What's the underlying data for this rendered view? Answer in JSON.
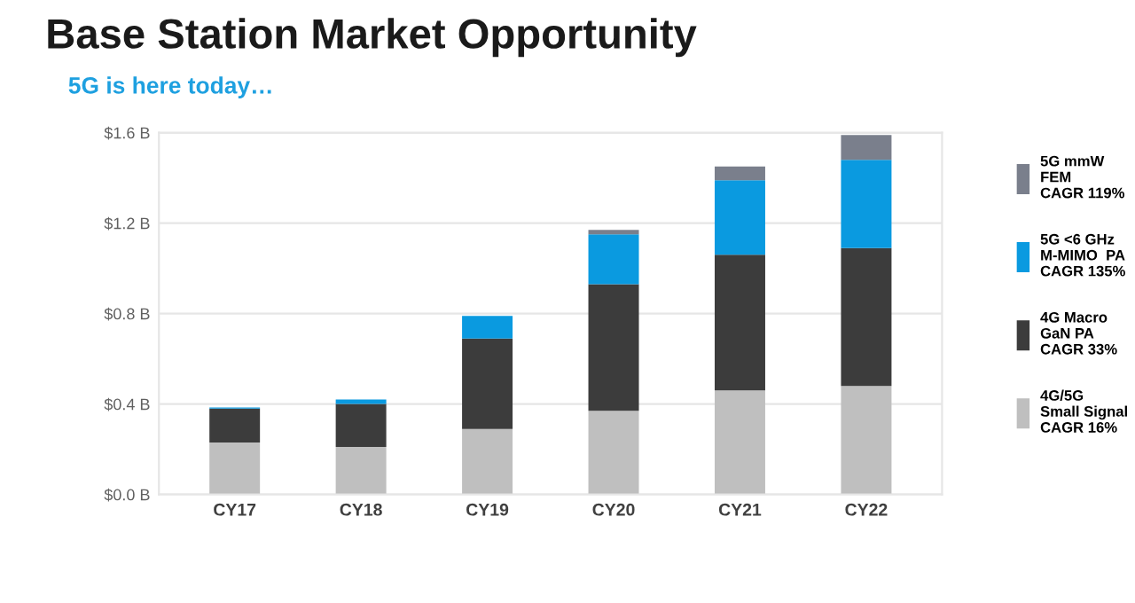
{
  "chart_data": {
    "type": "bar",
    "stacked": true,
    "title": "Base Station Market Opportunity",
    "subtitle": "5G is here today…",
    "categories": [
      "CY17",
      "CY18",
      "CY19",
      "CY20",
      "CY21",
      "CY22"
    ],
    "series": [
      {
        "name": "4G/5G\nSmall Signal\nCAGR 16%",
        "color": "#bfbfbf",
        "values": [
          0.23,
          0.21,
          0.29,
          0.37,
          0.46,
          0.48
        ]
      },
      {
        "name": "4G Macro\nGaN PA\nCAGR 33%",
        "color": "#3c3c3c",
        "values": [
          0.15,
          0.19,
          0.4,
          0.56,
          0.6,
          0.61
        ]
      },
      {
        "name": "5G <6 GHz\nM-MIMO  PA\nCAGR 135%",
        "color": "#0a9ae0",
        "values": [
          0.005,
          0.02,
          0.1,
          0.22,
          0.33,
          0.39
        ]
      },
      {
        "name": "5G mmW\nFEM\nCAGR 119%",
        "color": "#7a7f8c",
        "values": [
          0,
          0,
          0,
          0.02,
          0.06,
          0.11
        ]
      }
    ],
    "ylim": [
      0,
      1.6
    ],
    "yticks": [
      {
        "value": 0,
        "label": "$0.0 B"
      },
      {
        "value": 0.4,
        "label": "$0.4 B"
      },
      {
        "value": 0.8,
        "label": "$0.8 B"
      },
      {
        "value": 1.2,
        "label": "$1.2 B"
      },
      {
        "value": 1.6,
        "label": "$1.6 B"
      }
    ],
    "grid": "y",
    "legend": "right"
  }
}
